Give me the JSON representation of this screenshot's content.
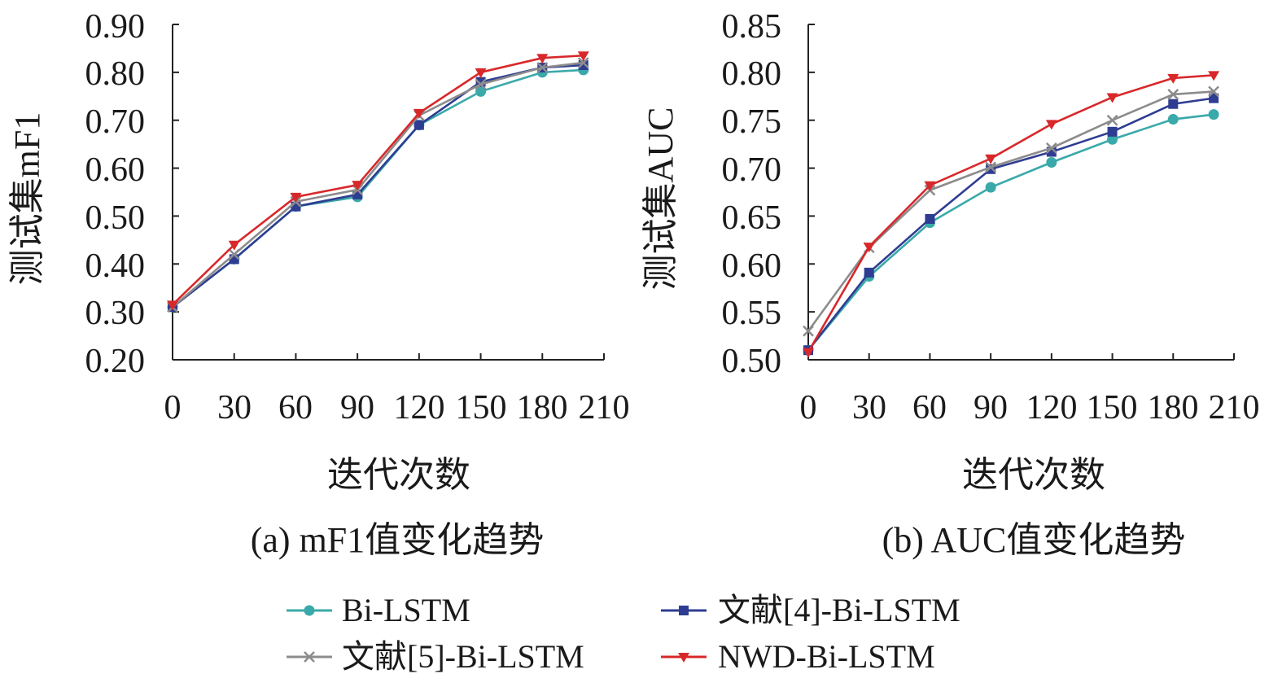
{
  "chart_data": [
    {
      "type": "line",
      "caption": "(a) mF1值变化趋势",
      "xlabel": "迭代次数",
      "ylabel": "测试集mF1",
      "xlim": [
        0,
        210
      ],
      "ylim": [
        0.2,
        0.9
      ],
      "x_ticks": [
        0,
        30,
        60,
        90,
        120,
        150,
        180,
        210
      ],
      "x_tick_labels": [
        "0",
        "30",
        "60",
        "90",
        "120",
        "150",
        "180",
        "210"
      ],
      "y_ticks": [
        0.2,
        0.3,
        0.4,
        0.5,
        0.6,
        0.7,
        0.8,
        0.9
      ],
      "y_tick_labels": [
        "0.20",
        "0.30",
        "0.40",
        "0.50",
        "0.60",
        "0.70",
        "0.80",
        "0.90"
      ],
      "x": [
        0,
        30,
        60,
        90,
        120,
        150,
        180,
        200
      ],
      "series": [
        {
          "name": "Bi-LSTM",
          "values": [
            0.31,
            0.41,
            0.52,
            0.54,
            0.69,
            0.76,
            0.8,
            0.805
          ]
        },
        {
          "name": "文献[4]-Bi-LSTM",
          "values": [
            0.31,
            0.41,
            0.52,
            0.545,
            0.69,
            0.78,
            0.81,
            0.815
          ]
        },
        {
          "name": "文献[5]-Bi-LSTM",
          "values": [
            0.31,
            0.42,
            0.53,
            0.555,
            0.71,
            0.775,
            0.81,
            0.82
          ]
        },
        {
          "name": "NWD-Bi-LSTM",
          "values": [
            0.315,
            0.44,
            0.54,
            0.565,
            0.715,
            0.8,
            0.83,
            0.835
          ]
        }
      ]
    },
    {
      "type": "line",
      "caption": "(b) AUC值变化趋势",
      "xlabel": "迭代次数",
      "ylabel": "测试集AUC",
      "xlim": [
        0,
        210
      ],
      "ylim": [
        0.5,
        0.85
      ],
      "x_ticks": [
        0,
        30,
        60,
        90,
        120,
        150,
        180,
        210
      ],
      "x_tick_labels": [
        "0",
        "30",
        "60",
        "90",
        "120",
        "150",
        "180",
        "210"
      ],
      "y_ticks": [
        0.5,
        0.55,
        0.6,
        0.65,
        0.7,
        0.75,
        0.8,
        0.85
      ],
      "y_tick_labels": [
        "0.50",
        "0.55",
        "0.60",
        "0.65",
        "0.70",
        "0.75",
        "0.80",
        "0.85"
      ],
      "x": [
        0,
        30,
        60,
        90,
        120,
        150,
        180,
        200
      ],
      "series": [
        {
          "name": "Bi-LSTM",
          "values": [
            0.51,
            0.587,
            0.643,
            0.68,
            0.706,
            0.73,
            0.751,
            0.756
          ]
        },
        {
          "name": "文献[4]-Bi-LSTM",
          "values": [
            0.51,
            0.591,
            0.647,
            0.699,
            0.717,
            0.738,
            0.767,
            0.773
          ]
        },
        {
          "name": "文献[5]-Bi-LSTM",
          "values": [
            0.53,
            0.617,
            0.677,
            0.701,
            0.721,
            0.75,
            0.777,
            0.78
          ]
        },
        {
          "name": "NWD-Bi-LSTM",
          "values": [
            0.508,
            0.618,
            0.682,
            0.71,
            0.746,
            0.774,
            0.794,
            0.797
          ]
        }
      ]
    }
  ],
  "legend": [
    {
      "label": "Bi-LSTM",
      "color": "#3aa9aa",
      "marker": "circle"
    },
    {
      "label": "文献[4]-Bi-LSTM",
      "color": "#2e3d92",
      "marker": "square"
    },
    {
      "label": "文献[5]-Bi-LSTM",
      "color": "#8c8c8c",
      "marker": "x"
    },
    {
      "label": "NWD-Bi-LSTM",
      "color": "#d8282a",
      "marker": "triangle-down"
    }
  ]
}
